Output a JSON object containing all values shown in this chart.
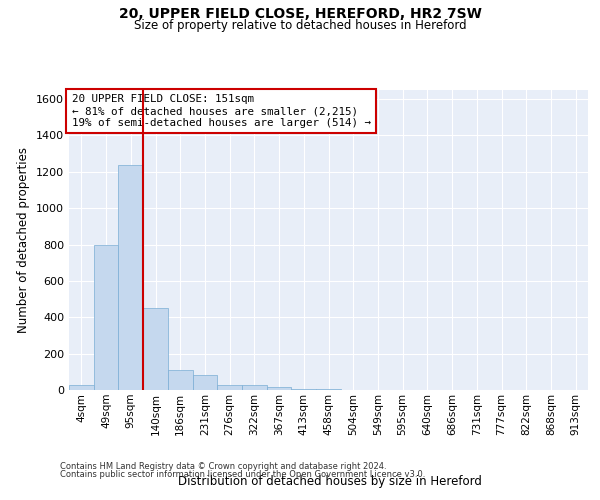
{
  "title1": "20, UPPER FIELD CLOSE, HEREFORD, HR2 7SW",
  "title2": "Size of property relative to detached houses in Hereford",
  "xlabel": "Distribution of detached houses by size in Hereford",
  "ylabel": "Number of detached properties",
  "categories": [
    "4sqm",
    "49sqm",
    "95sqm",
    "140sqm",
    "186sqm",
    "231sqm",
    "276sqm",
    "322sqm",
    "367sqm",
    "413sqm",
    "458sqm",
    "504sqm",
    "549sqm",
    "595sqm",
    "640sqm",
    "686sqm",
    "731sqm",
    "777sqm",
    "822sqm",
    "868sqm",
    "913sqm"
  ],
  "values": [
    28,
    800,
    1240,
    450,
    110,
    85,
    28,
    28,
    18,
    8,
    4,
    0,
    0,
    0,
    0,
    0,
    0,
    0,
    0,
    0,
    0
  ],
  "bar_color": "#c5d8ee",
  "bar_edge_color": "#7aadd4",
  "vline_color": "#cc0000",
  "vline_pos": 2.5,
  "annotation_line1": "20 UPPER FIELD CLOSE: 151sqm",
  "annotation_line2": "← 81% of detached houses are smaller (2,215)",
  "annotation_line3": "19% of semi-detached houses are larger (514) →",
  "ylim": [
    0,
    1650
  ],
  "yticks": [
    0,
    200,
    400,
    600,
    800,
    1000,
    1200,
    1400,
    1600
  ],
  "bg_color": "#e8eef8",
  "grid_color": "#ffffff",
  "footnote1": "Contains HM Land Registry data © Crown copyright and database right 2024.",
  "footnote2": "Contains public sector information licensed under the Open Government Licence v3.0."
}
